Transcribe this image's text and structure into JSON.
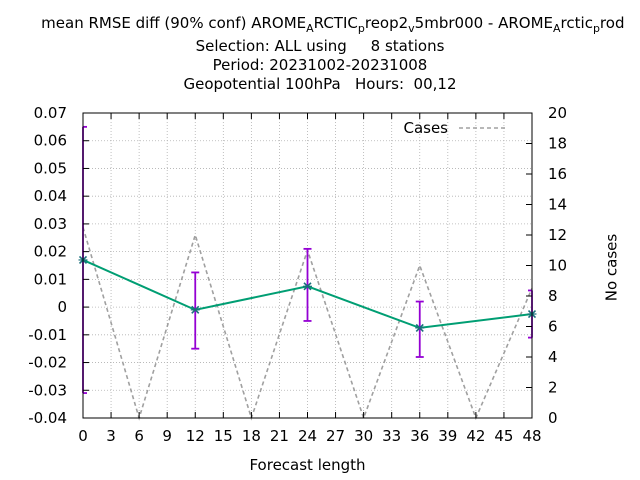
{
  "title": {
    "line1_parts": [
      {
        "text": "mean RMSE diff (90% conf) AROME",
        "sub": false
      },
      {
        "text": "A",
        "sub": true
      },
      {
        "text": "RCTIC",
        "sub": false
      },
      {
        "text": "p",
        "sub": true
      },
      {
        "text": "reop2",
        "sub": false
      },
      {
        "text": "v",
        "sub": true
      },
      {
        "text": "5mbr000 - AROME",
        "sub": false
      },
      {
        "text": "A",
        "sub": true
      },
      {
        "text": "rctic",
        "sub": false
      },
      {
        "text": "p",
        "sub": true
      },
      {
        "text": "rod",
        "sub": false
      }
    ],
    "line2": "Selection: ALL using     8 stations",
    "line3": "Period: 20231002-20231008",
    "line4": "Geopotential 100hPa   Hours:  00,12"
  },
  "chart_data": {
    "type": "line",
    "xlabel": "Forecast length",
    "ylabel": "",
    "y2label": "No cases",
    "x_ticks": [
      0,
      3,
      6,
      9,
      12,
      15,
      18,
      21,
      24,
      27,
      30,
      33,
      36,
      39,
      42,
      45,
      48
    ],
    "xlim": [
      0,
      48
    ],
    "ylim": [
      -0.04,
      0.07
    ],
    "y_ticks": [
      -0.04,
      -0.03,
      -0.02,
      -0.01,
      0,
      0.01,
      0.02,
      0.03,
      0.04,
      0.05,
      0.06,
      0.07
    ],
    "y_tick_labels": [
      "-0.04",
      "-0.03",
      "-0.02",
      "-0.01",
      "0",
      "0.01",
      "0.02",
      "0.03",
      "0.04",
      "0.05",
      "0.06",
      "0.07"
    ],
    "y2lim": [
      0,
      20
    ],
    "y2_ticks": [
      0,
      2,
      4,
      6,
      8,
      10,
      12,
      14,
      16,
      18,
      20
    ],
    "grid": true,
    "legend_position": "top-right",
    "series": [
      {
        "kind": "errorbar-line",
        "color": "#009e73",
        "error_color": "#9400d3",
        "x": [
          0,
          12,
          24,
          36,
          48
        ],
        "y": [
          0.017,
          -0.001,
          0.0075,
          -0.0075,
          -0.0025
        ],
        "lower": [
          -0.031,
          -0.015,
          -0.005,
          -0.018,
          -0.011
        ],
        "upper": [
          0.065,
          0.0125,
          0.021,
          0.002,
          0.006
        ]
      },
      {
        "name": "Cases",
        "kind": "cases",
        "axis": "y2",
        "color": "#a0a0a0",
        "dash": true,
        "x": [
          0,
          6,
          12,
          18,
          24,
          30,
          36,
          42,
          48
        ],
        "y": [
          12.5,
          0,
          12,
          0,
          11,
          0,
          10,
          0,
          8.5
        ]
      }
    ]
  }
}
